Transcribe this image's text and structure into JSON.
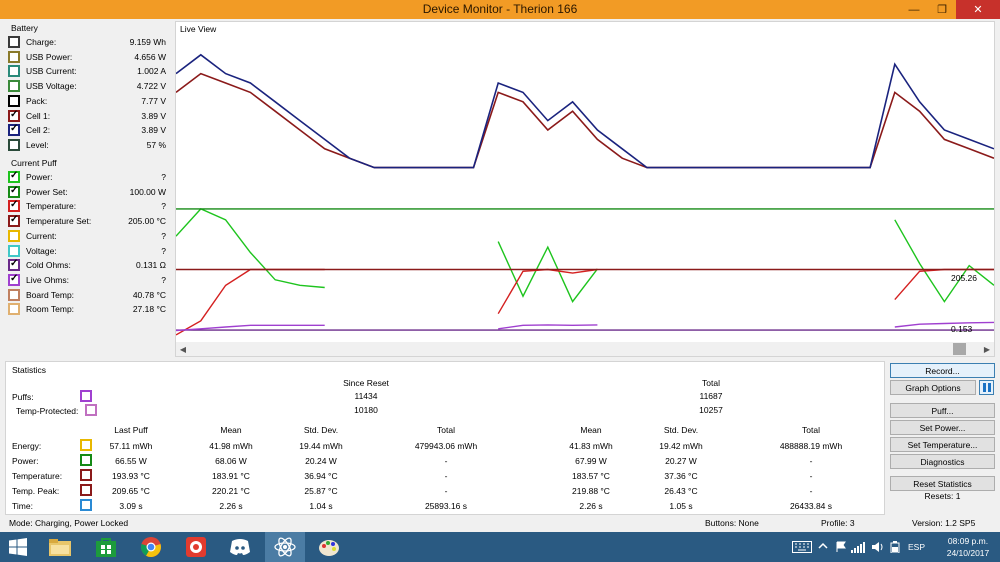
{
  "window": {
    "title": "Device Monitor - Therion 166"
  },
  "battery": {
    "label": "Battery",
    "channels": [
      {
        "name": "Charge:",
        "value": "9.159 Wh",
        "color": "#3a3a3a",
        "checked": false
      },
      {
        "name": "USB Power:",
        "value": "4.656 W",
        "color": "#8a7a2a",
        "checked": false
      },
      {
        "name": "USB Current:",
        "value": "1.002 A",
        "color": "#2a8a7a",
        "checked": false
      },
      {
        "name": "USB Voltage:",
        "value": "4.722 V",
        "color": "#3a8a3a",
        "checked": false
      },
      {
        "name": "Pack:",
        "value": "7.77 V",
        "color": "#000000",
        "checked": false
      },
      {
        "name": "Cell 1:",
        "value": "3.89 V",
        "color": "#8b1a1a",
        "checked": true
      },
      {
        "name": "Cell 2:",
        "value": "3.89 V",
        "color": "#1a237e",
        "checked": true
      },
      {
        "name": "Level:",
        "value": "57 %",
        "color": "#2a4a3a",
        "checked": false
      }
    ]
  },
  "current_puff": {
    "label": "Current Puff",
    "channels": [
      {
        "name": "Power:",
        "value": "?",
        "color": "#1ec41e",
        "checked": true
      },
      {
        "name": "Power Set:",
        "value": "100.00 W",
        "color": "#158a15",
        "checked": true
      },
      {
        "name": "Temperature:",
        "value": "?",
        "color": "#d42020",
        "checked": true
      },
      {
        "name": "Temperature Set:",
        "value": "205.00 °C",
        "color": "#8b1a1a",
        "checked": true
      },
      {
        "name": "Current:",
        "value": "?",
        "color": "#e8b800",
        "checked": false
      },
      {
        "name": "Voltage:",
        "value": "?",
        "color": "#40c8c8",
        "checked": false
      },
      {
        "name": "Cold Ohms:",
        "value": "0.131 Ω",
        "color": "#6a2a8a",
        "checked": true
      },
      {
        "name": "Live Ohms:",
        "value": "?",
        "color": "#a040d0",
        "checked": true
      },
      {
        "name": "Board Temp:",
        "value": "40.78 °C",
        "color": "#c08060",
        "checked": false
      },
      {
        "name": "Room Temp:",
        "value": "27.18 °C",
        "color": "#e0b070",
        "checked": false
      }
    ]
  },
  "live_view": {
    "label": "Live View",
    "annotations": [
      "205.26",
      "0.153"
    ]
  },
  "chart_data": {
    "type": "line",
    "title": "",
    "xlabel": "",
    "ylabel": "",
    "grid": false,
    "series": [
      {
        "name": "Cell 1",
        "color": "#8b1a1a",
        "values": [
          3.84,
          3.82,
          3.83,
          3.84,
          3.86,
          3.88,
          3.9,
          3.91,
          3.92,
          3.92,
          3.92,
          3.92,
          3.92,
          3.84,
          3.85,
          3.88,
          3.86,
          3.89,
          3.91,
          3.92,
          3.92,
          3.92,
          3.92,
          3.92,
          3.92,
          3.92,
          3.92,
          3.92,
          3.92,
          3.84,
          3.86,
          3.89,
          3.9,
          3.91
        ]
      },
      {
        "name": "Cell 2",
        "color": "#1a237e",
        "values": [
          3.82,
          3.8,
          3.82,
          3.83,
          3.85,
          3.87,
          3.89,
          3.91,
          3.92,
          3.92,
          3.92,
          3.92,
          3.92,
          3.83,
          3.84,
          3.87,
          3.85,
          3.88,
          3.9,
          3.92,
          3.92,
          3.92,
          3.92,
          3.92,
          3.92,
          3.92,
          3.92,
          3.92,
          3.92,
          3.81,
          3.85,
          3.88,
          3.89,
          3.9
        ]
      },
      {
        "name": "Power",
        "color": "#1ec41e",
        "values": [
          75,
          100,
          90,
          60,
          35,
          30,
          28,
          null,
          null,
          null,
          null,
          null,
          null,
          70,
          20,
          65,
          15,
          45,
          null,
          null,
          null,
          null,
          null,
          null,
          null,
          null,
          null,
          null,
          null,
          90,
          50,
          15,
          48,
          30
        ]
      },
      {
        "name": "Power Set",
        "color": "#158a15",
        "values": [
          100,
          100,
          100,
          100,
          100,
          100,
          100,
          100,
          100,
          100,
          100,
          100,
          100,
          100,
          100,
          100,
          100,
          100,
          100,
          100,
          100,
          100,
          100,
          100,
          100,
          100,
          100,
          100,
          100,
          100,
          100,
          100,
          100,
          100
        ]
      },
      {
        "name": "Temperature",
        "color": "#d42020",
        "values": [
          20,
          60,
          160,
          205,
          205,
          205,
          205,
          null,
          null,
          null,
          null,
          null,
          null,
          80,
          200,
          205,
          195,
          205,
          null,
          null,
          null,
          null,
          null,
          null,
          null,
          null,
          null,
          null,
          null,
          120,
          200,
          205,
          205,
          205
        ]
      },
      {
        "name": "Temperature Set",
        "color": "#8b1a1a",
        "values": [
          205,
          205,
          205,
          205,
          205,
          205,
          205,
          205,
          205,
          205,
          205,
          205,
          205,
          205,
          205,
          205,
          205,
          205,
          205,
          205,
          205,
          205,
          205,
          205,
          205,
          205,
          205,
          205,
          205,
          205,
          205,
          205,
          205,
          205
        ]
      },
      {
        "name": "Cold Ohms",
        "color": "#6a2a8a",
        "values": [
          0.131,
          0.131,
          0.131,
          0.131,
          0.131,
          0.131,
          0.131,
          0.131,
          0.131,
          0.131,
          0.131,
          0.131,
          0.131,
          0.131,
          0.131,
          0.131,
          0.131,
          0.131,
          0.131,
          0.131,
          0.131,
          0.131,
          0.131,
          0.131,
          0.131,
          0.131,
          0.131,
          0.131,
          0.131,
          0.131,
          0.131,
          0.131,
          0.131,
          0.131
        ]
      },
      {
        "name": "Live Ohms",
        "color": "#a040d0",
        "values": [
          0.13,
          0.135,
          0.14,
          0.145,
          0.145,
          0.145,
          0.145,
          null,
          null,
          null,
          null,
          null,
          null,
          0.135,
          0.145,
          0.146,
          0.145,
          0.146,
          null,
          null,
          null,
          null,
          null,
          null,
          null,
          null,
          null,
          null,
          null,
          0.14,
          0.148,
          0.15,
          0.152,
          0.153
        ]
      }
    ]
  },
  "statistics": {
    "label": "Statistics",
    "since_reset_label": "Since Reset",
    "total_label": "Total",
    "puffs_label": "Puffs:",
    "temp_protected_label": "Temp-Protected:",
    "puffs_since_reset": "11434",
    "puffs_total": "11687",
    "temp_protected_since_reset": "10180",
    "temp_protected_total": "10257",
    "columns": [
      "Last Puff",
      "Mean",
      "Std. Dev.",
      "Total",
      "Mean",
      "Std. Dev.",
      "Total"
    ],
    "rows": [
      {
        "label": "Energy:",
        "color": "#e8b800",
        "values": [
          "57.11 mWh",
          "41.98 mWh",
          "19.44 mWh",
          "479943.06 mWh",
          "41.83 mWh",
          "19.42 mWh",
          "488888.19 mWh"
        ]
      },
      {
        "label": "Power:",
        "color": "#158a15",
        "values": [
          "66.55 W",
          "68.06 W",
          "20.24 W",
          "-",
          "67.99 W",
          "20.27 W",
          "-"
        ]
      },
      {
        "label": "Temperature:",
        "color": "#8b1a1a",
        "values": [
          "193.93 °C",
          "183.91 °C",
          "36.94 °C",
          "-",
          "183.57 °C",
          "37.36 °C",
          "-"
        ]
      },
      {
        "label": "Temp. Peak:",
        "color": "#8b1a1a",
        "values": [
          "209.65 °C",
          "220.21 °C",
          "25.87 °C",
          "-",
          "219.88 °C",
          "26.43 °C",
          "-"
        ]
      },
      {
        "label": "Time:",
        "color": "#2a8ad4",
        "values": [
          "3.09 s",
          "2.26 s",
          "1.04 s",
          "25893.16 s",
          "2.26 s",
          "1.05 s",
          "26433.84 s"
        ]
      }
    ]
  },
  "buttons": {
    "record": "Record...",
    "graph_options": "Graph Options",
    "puff": "Puff...",
    "set_power": "Set Power...",
    "set_temperature": "Set Temperature...",
    "diagnostics": "Diagnostics",
    "reset_statistics": "Reset Statistics",
    "resets": "Resets: 1"
  },
  "status": {
    "mode": "Mode: Charging, Power Locked",
    "buttons": "Buttons: None",
    "profile": "Profile: 3",
    "version": "Version: 1.2 SP5"
  },
  "taskbar": {
    "language": "ESP",
    "time": "08:09 p.m.",
    "date": "24/10/2017"
  },
  "colors": {
    "titlebar": "#f29b25",
    "taskbar": "#2a5a82",
    "close": "#c7312b"
  }
}
